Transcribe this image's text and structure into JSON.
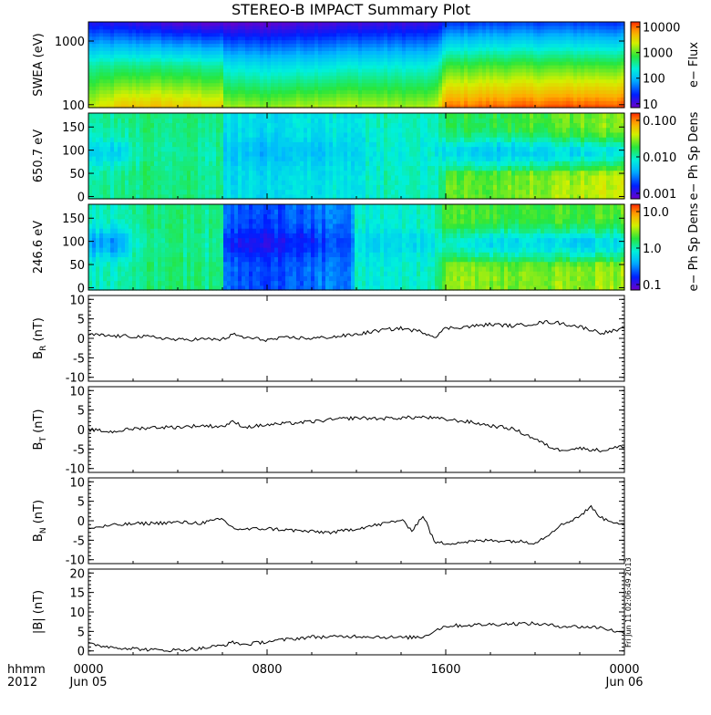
{
  "figure": {
    "title": "STEREO-B IMPACT Summary Plot",
    "timestamp": "Fri Jun 11 02:06:49 2013",
    "bottom_labels": {
      "left_top": "hhmm",
      "left_bottom": "2012"
    }
  },
  "chart_data": [
    {
      "type": "heatmap",
      "id": "swea",
      "ylabel": "SWEA (eV)",
      "ylim": [
        90,
        2000
      ],
      "yscale": "log",
      "yticks": [
        100,
        1000
      ],
      "ytick_labels": [
        "100",
        "1000"
      ],
      "colorbar": {
        "label": "e− Flux",
        "scale": "log",
        "ticks": [
          10,
          100,
          1000,
          10000
        ],
        "tick_labels": [
          "10",
          "100",
          "1000",
          "10000"
        ]
      },
      "profile": {
        "x_hours": [
          0,
          1.5,
          3,
          4,
          6,
          6.1,
          8,
          10,
          12,
          14,
          15.5,
          16,
          18,
          20,
          22,
          24
        ],
        "low_energy_level": [
          0.72,
          0.82,
          0.84,
          0.82,
          0.8,
          0.7,
          0.68,
          0.72,
          0.72,
          0.7,
          0.7,
          0.92,
          0.94,
          0.95,
          0.96,
          0.96
        ],
        "mid_energy_level": [
          0.5,
          0.52,
          0.53,
          0.52,
          0.5,
          0.42,
          0.4,
          0.42,
          0.44,
          0.44,
          0.43,
          0.6,
          0.62,
          0.62,
          0.62,
          0.62
        ],
        "high_energy_level": [
          0.12,
          0.1,
          0.08,
          0.05,
          0.04,
          0.03,
          0.03,
          0.06,
          0.07,
          0.08,
          0.07,
          0.18,
          0.2,
          0.2,
          0.2,
          0.18
        ]
      }
    },
    {
      "type": "heatmap",
      "id": "pad650",
      "ylabel": "650.7 eV",
      "ylim": [
        -5,
        180
      ],
      "yticks": [
        0,
        50,
        100,
        150
      ],
      "ytick_labels": [
        "0",
        "50",
        "100",
        "150"
      ],
      "colorbar": {
        "label": "e− Ph Sp Dens",
        "scale": "log",
        "ticks": [
          0.001,
          0.01,
          0.1
        ],
        "tick_labels": [
          "0.001",
          "0.010",
          "0.100"
        ]
      },
      "profile": {
        "x_hours": [
          0,
          1.5,
          2,
          4,
          6,
          6.1,
          8,
          10,
          12,
          13,
          15.5,
          16,
          18,
          20,
          22,
          24
        ],
        "base_level": [
          0.48,
          0.52,
          0.54,
          0.54,
          0.52,
          0.42,
          0.4,
          0.42,
          0.44,
          0.48,
          0.46,
          0.6,
          0.58,
          0.62,
          0.66,
          0.7
        ],
        "band_level": [
          0.38,
          0.38,
          0.5,
          0.52,
          0.5,
          0.36,
          0.34,
          0.36,
          0.4,
          0.46,
          0.44,
          0.42,
          0.36,
          0.38,
          0.4,
          0.44
        ]
      }
    },
    {
      "type": "heatmap",
      "id": "pad246",
      "ylabel": "246.6 eV",
      "ylim": [
        -5,
        180
      ],
      "yticks": [
        0,
        50,
        100,
        150
      ],
      "ytick_labels": [
        "0",
        "50",
        "100",
        "150"
      ],
      "colorbar": {
        "label": "e− Ph Sp Dens",
        "scale": "log",
        "ticks": [
          0.1,
          1.0,
          10.0
        ],
        "tick_labels": [
          "0.1",
          "1.0",
          "10.0"
        ]
      },
      "profile": {
        "x_hours": [
          0,
          1.5,
          2,
          4,
          6,
          6.1,
          8,
          10,
          11.7,
          12,
          15.5,
          16,
          18,
          20,
          22,
          24
        ],
        "base_level": [
          0.46,
          0.5,
          0.54,
          0.54,
          0.52,
          0.22,
          0.2,
          0.24,
          0.26,
          0.46,
          0.48,
          0.62,
          0.62,
          0.62,
          0.64,
          0.64
        ],
        "band_level": [
          0.3,
          0.3,
          0.5,
          0.52,
          0.5,
          0.14,
          0.12,
          0.16,
          0.22,
          0.4,
          0.42,
          0.46,
          0.4,
          0.42,
          0.38,
          0.42
        ]
      }
    },
    {
      "type": "line",
      "id": "br",
      "ylabel_main": "B",
      "ylabel_sub": "R",
      "ylabel_rest": " (nT)",
      "ylim": [
        -11,
        11
      ],
      "yticks": [
        -10,
        -5,
        0,
        5,
        10
      ],
      "ytick_labels": [
        "-10",
        "-5",
        "0",
        "5",
        "10"
      ],
      "x_hours": [
        0,
        1,
        2,
        3,
        4,
        5,
        6,
        6.5,
        7,
        8,
        9,
        10,
        11,
        12,
        13,
        14,
        15,
        15.5,
        16,
        17,
        18,
        19,
        20,
        20.5,
        21,
        22,
        23,
        24
      ],
      "values": [
        1,
        0.6,
        0.5,
        0.3,
        -0.4,
        -0.2,
        -0.3,
        1.0,
        0.2,
        -0.4,
        0.2,
        0.0,
        0.4,
        1.0,
        2.0,
        2.6,
        1.6,
        0.4,
        2.6,
        3.0,
        3.6,
        3.2,
        3.8,
        4.2,
        4.0,
        3.0,
        1.4,
        2.4
      ]
    },
    {
      "type": "line",
      "id": "bt",
      "ylabel_main": "B",
      "ylabel_sub": "T",
      "ylabel_rest": " (nT)",
      "ylim": [
        -11,
        11
      ],
      "yticks": [
        -10,
        -5,
        0,
        5,
        10
      ],
      "ytick_labels": [
        "-10",
        "-5",
        "0",
        "5",
        "10"
      ],
      "x_hours": [
        0,
        1,
        2,
        3,
        4,
        5,
        6,
        6.5,
        7,
        8,
        9,
        10,
        11,
        12,
        13,
        14,
        15,
        16,
        17,
        18,
        19,
        20,
        20.5,
        21,
        22,
        23,
        24
      ],
      "values": [
        0,
        -0.6,
        0.2,
        0.6,
        0.6,
        1.0,
        0.8,
        2.0,
        0.6,
        1.2,
        1.6,
        2.0,
        2.6,
        3.0,
        2.8,
        3.0,
        3.2,
        2.6,
        2.0,
        1.0,
        0.2,
        -2.4,
        -4.0,
        -5.2,
        -4.8,
        -5.4,
        -4.2
      ]
    },
    {
      "type": "line",
      "id": "bn",
      "ylabel_main": "B",
      "ylabel_sub": "N",
      "ylabel_rest": " (nT)",
      "ylim": [
        -11,
        11
      ],
      "yticks": [
        -10,
        -5,
        0,
        5,
        10
      ],
      "ytick_labels": [
        "-10",
        "-5",
        "0",
        "5",
        "10"
      ],
      "x_hours": [
        0,
        1,
        2,
        3,
        4,
        5,
        6,
        6.5,
        7,
        8,
        9,
        10,
        11,
        12,
        13,
        14,
        14.5,
        15,
        15.5,
        16,
        17,
        18,
        19,
        20,
        20.5,
        21,
        22,
        22.5,
        23,
        24
      ],
      "values": [
        -2.0,
        -1.2,
        -0.8,
        -0.6,
        -0.4,
        -0.6,
        0.4,
        -2.0,
        -2.2,
        -2.0,
        -2.4,
        -2.8,
        -3.0,
        -2.0,
        -1.0,
        0.2,
        -2.4,
        1.4,
        -5.6,
        -5.8,
        -5.4,
        -5.0,
        -5.2,
        -5.6,
        -4.0,
        -1.6,
        1.2,
        3.6,
        0.6,
        -1.0
      ]
    },
    {
      "type": "line",
      "id": "bmag",
      "ylabel": "|B| (nT)",
      "ylim": [
        -1,
        21
      ],
      "yticks": [
        0,
        5,
        10,
        15,
        20
      ],
      "ytick_labels": [
        "0",
        "5",
        "10",
        "15",
        "20"
      ],
      "x_hours": [
        0,
        1,
        2,
        3,
        4,
        5,
        6,
        6.5,
        7,
        8,
        9,
        10,
        11,
        12,
        13,
        14,
        15,
        15.5,
        16,
        17,
        18,
        19,
        20,
        21,
        22,
        23,
        24
      ],
      "values": [
        1.8,
        1.0,
        0.6,
        0.2,
        0.2,
        0.6,
        1.4,
        2.2,
        1.6,
        2.4,
        3.0,
        3.6,
        3.6,
        3.8,
        3.6,
        3.4,
        3.6,
        5.2,
        6.4,
        6.6,
        6.8,
        7.0,
        7.0,
        6.4,
        6.2,
        6.0,
        4.4
      ]
    }
  ],
  "xaxis": {
    "xlim_hours": [
      0,
      24
    ],
    "ticks_hours": [
      0,
      8,
      16,
      24
    ],
    "tick_labels": [
      "0000",
      "0800",
      "1600",
      "0000"
    ],
    "date_labels": [
      "Jun 05",
      "",
      "",
      "Jun 06"
    ]
  }
}
